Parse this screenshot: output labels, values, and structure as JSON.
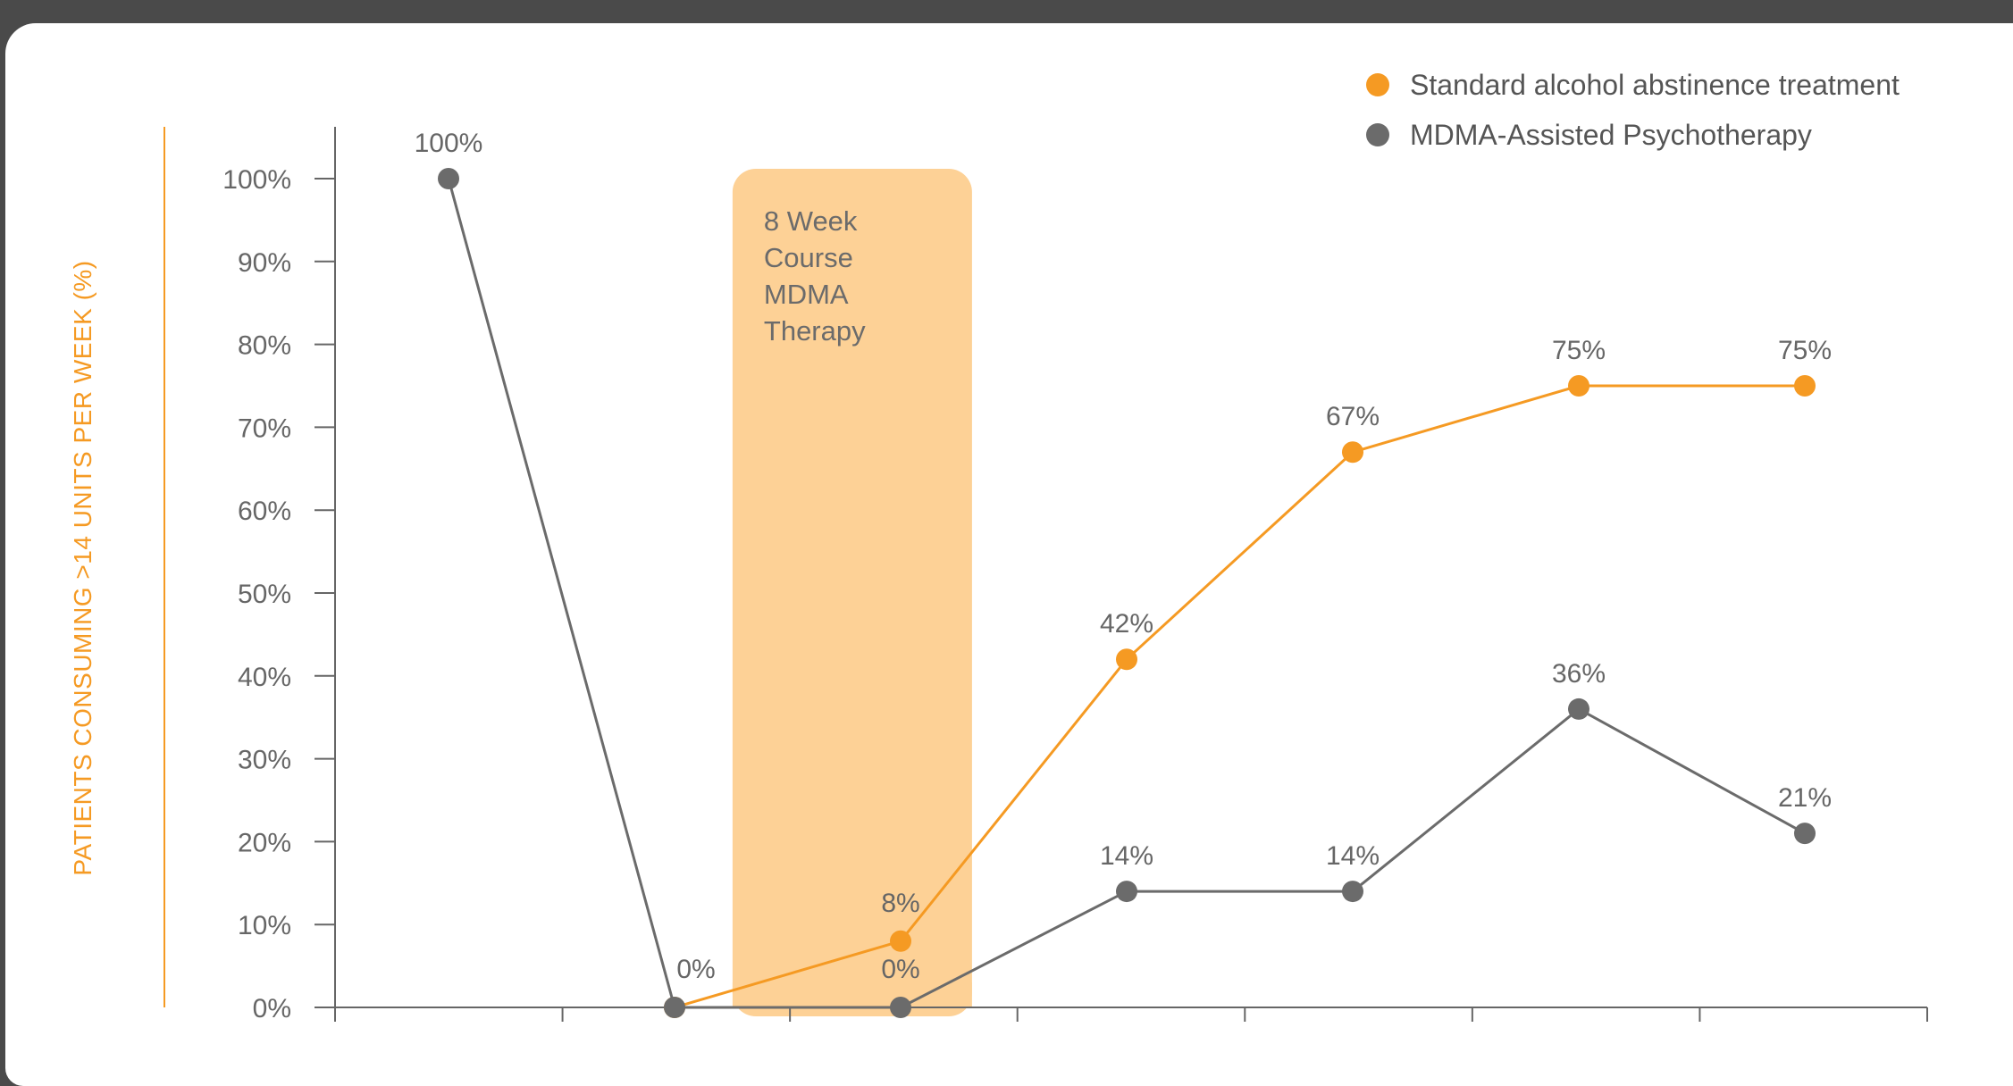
{
  "chart_data": {
    "type": "line",
    "ylabel": "PATIENTS CONSUMING >14 UNITS PER WEEK (%)",
    "xlabel": "",
    "title": "",
    "ylim": [
      0,
      100
    ],
    "yticks": [
      "0%",
      "10%",
      "20%",
      "30%",
      "40%",
      "50%",
      "60%",
      "70%",
      "80%",
      "90%",
      "100%"
    ],
    "x_tick_count": 8,
    "x": [
      1,
      2,
      3,
      4,
      5,
      6,
      7
    ],
    "series": [
      {
        "name": "Standard alcohol abstinence treatment",
        "color": "#f59a23",
        "x": [
          2,
          3,
          4,
          5,
          6,
          7
        ],
        "values": [
          0,
          8,
          42,
          67,
          75,
          75
        ],
        "labels": [
          "",
          "8%",
          "42%",
          "67%",
          "75%",
          "75%"
        ]
      },
      {
        "name": "MDMA-Assisted Psychotherapy",
        "color": "#6b6b6b",
        "x": [
          1,
          2,
          3,
          4,
          5,
          6,
          7
        ],
        "values": [
          100,
          0,
          0,
          14,
          14,
          36,
          21
        ],
        "labels": [
          "100%",
          "0%",
          "0%",
          "14%",
          "14%",
          "36%",
          "21%"
        ]
      }
    ],
    "annotation": {
      "lines": [
        "8 Week",
        "Course",
        "MDMA",
        "Therapy"
      ],
      "x_range": [
        2.3,
        3.3
      ],
      "color": "#fdd196"
    },
    "grid": false,
    "legend_position": "top-right"
  }
}
